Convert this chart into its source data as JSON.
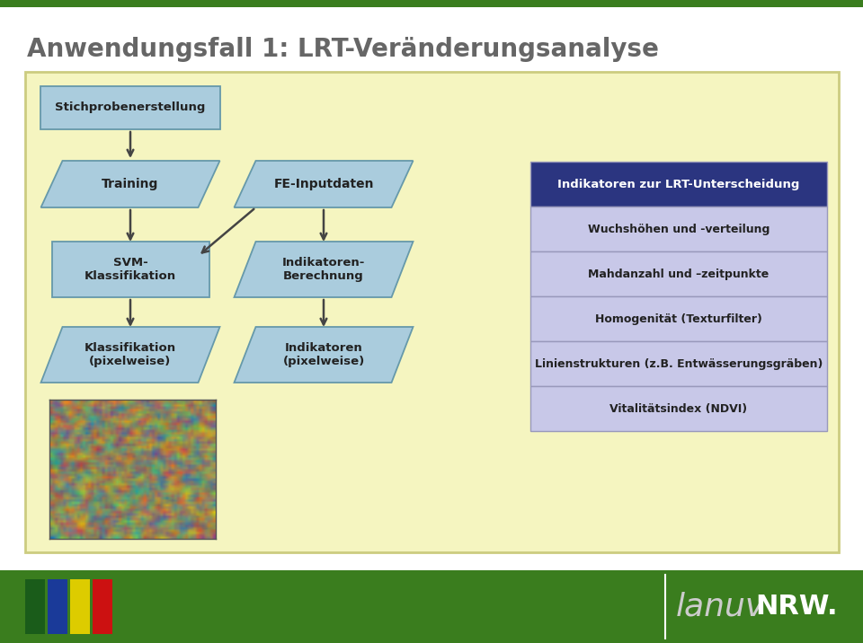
{
  "title": "Anwendungsfall 1: LRT-Veränderungsanalyse",
  "title_color": "#666666",
  "title_fontsize": 20,
  "bg_color": "#ffffff",
  "panel_bg": "#f5f5c0",
  "panel_border": "#cccc80",
  "green_color": "#3a7d1e",
  "footer_bg": "#3a7d1e",
  "table_header": "Indikatoren zur LRT-Unterscheidung",
  "table_rows": [
    "Wuchshöhen und -verteilung",
    "Mahdanzahl und –zeitpunkte",
    "Homogenität (Texturfilter)",
    "Linienstrukturen (z.B. Entwässerungsgräben)",
    "Vitalitätsindex (NDVI)"
  ],
  "table_header_bg": "#2b3580",
  "table_header_fg": "#ffffff",
  "table_row_bg": "#c8c8e8",
  "table_row_border": "#9999bb",
  "box_fill": "#aaccdd",
  "box_border": "#6699aa",
  "arrow_color": "#444444",
  "footer_sq_colors": [
    "#1a5c1a",
    "#1a3a99",
    "#ddcc00",
    "#cc1111"
  ],
  "lanuv_color": "#cccccc",
  "nrw_color": "#ffffff"
}
